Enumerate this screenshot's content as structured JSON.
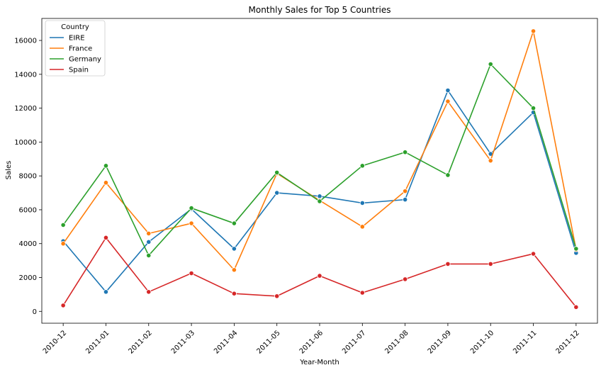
{
  "chart_data": {
    "type": "line",
    "title": "Monthly Sales for Top 5 Countries",
    "xlabel": "Year-Month",
    "ylabel": "Sales",
    "categories": [
      "2010-12",
      "2011-01",
      "2011-02",
      "2011-03",
      "2011-04",
      "2011-05",
      "2011-06",
      "2011-07",
      "2011-08",
      "2011-09",
      "2011-10",
      "2011-11",
      "2011-12"
    ],
    "ylim": [
      -700,
      17300
    ],
    "yticks": [
      0,
      2000,
      4000,
      6000,
      8000,
      10000,
      12000,
      14000,
      16000
    ],
    "grid": false,
    "legend": {
      "title": "Country",
      "placement": "top-left"
    },
    "series": [
      {
        "name": "EIRE",
        "color": "#1f77b4",
        "values": [
          4150,
          1150,
          4100,
          6050,
          3700,
          7000,
          6800,
          6400,
          6600,
          13050,
          9300,
          11750,
          3450
        ]
      },
      {
        "name": "France",
        "color": "#ff7f0e",
        "values": [
          4000,
          7600,
          4600,
          5200,
          2450,
          8150,
          6550,
          5000,
          7100,
          12400,
          8900,
          16550,
          3650
        ]
      },
      {
        "name": "Germany",
        "color": "#2ca02c",
        "values": [
          5100,
          8600,
          3300,
          6100,
          5200,
          8200,
          6500,
          8600,
          9400,
          8050,
          14600,
          12000,
          3700
        ]
      },
      {
        "name": "Spain",
        "color": "#d62728",
        "values": [
          350,
          4350,
          1150,
          2250,
          1050,
          900,
          2100,
          1100,
          1900,
          2800,
          2800,
          3400,
          250
        ]
      }
    ]
  }
}
